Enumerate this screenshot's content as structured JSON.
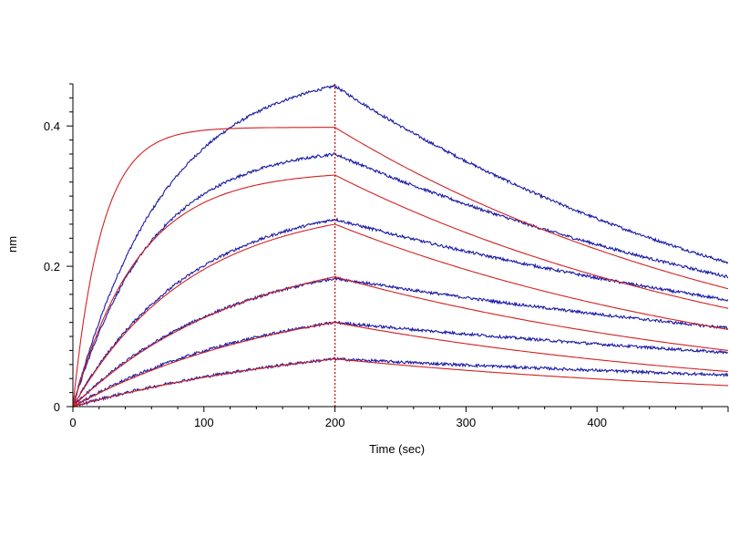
{
  "chart_data": {
    "type": "line",
    "title": "",
    "xlabel": "Time (sec)",
    "ylabel": "nm",
    "xlim": [
      0,
      500
    ],
    "ylim": [
      0,
      0.46
    ],
    "xticks": [
      0,
      100,
      200,
      300,
      400
    ],
    "yticks": [
      0,
      0.2,
      0.4
    ],
    "xtick_labels": [
      "0",
      "100",
      "200",
      "300",
      "400"
    ],
    "ytick_labels": [
      "0",
      "0.2",
      "0.4"
    ],
    "grid": false,
    "legend": "none",
    "marker_line": {
      "x": 200,
      "color": "#cc0000",
      "style": "dotted"
    },
    "colors": {
      "measured": "#1a1aa6",
      "fit": "#d42020",
      "axis": "#000000"
    },
    "series": [
      {
        "kind": "measured",
        "peak_at_200": 0.457,
        "end_at_500": 0.205,
        "tau_assoc": 70
      },
      {
        "kind": "measured",
        "peak_at_200": 0.36,
        "end_at_500": 0.185,
        "tau_assoc": 60
      },
      {
        "kind": "measured",
        "peak_at_200": 0.267,
        "end_at_500": 0.152,
        "tau_assoc": 90
      },
      {
        "kind": "measured",
        "peak_at_200": 0.183,
        "end_at_500": 0.112,
        "tau_assoc": 120
      },
      {
        "kind": "measured",
        "peak_at_200": 0.12,
        "end_at_500": 0.077,
        "tau_assoc": 150
      },
      {
        "kind": "measured",
        "peak_at_200": 0.068,
        "end_at_500": 0.045,
        "tau_assoc": 200
      },
      {
        "kind": "fit",
        "peak_at_200": 0.398,
        "end_at_500": 0.168,
        "tau_assoc": 22
      },
      {
        "kind": "fit",
        "peak_at_200": 0.33,
        "end_at_500": 0.14,
        "tau_assoc": 50
      },
      {
        "kind": "fit",
        "peak_at_200": 0.26,
        "end_at_500": 0.11,
        "tau_assoc": 90
      },
      {
        "kind": "fit",
        "peak_at_200": 0.185,
        "end_at_500": 0.08,
        "tau_assoc": 130
      },
      {
        "kind": "fit",
        "peak_at_200": 0.12,
        "end_at_500": 0.05,
        "tau_assoc": 170
      },
      {
        "kind": "fit",
        "peak_at_200": 0.068,
        "end_at_500": 0.03,
        "tau_assoc": 220
      }
    ]
  }
}
